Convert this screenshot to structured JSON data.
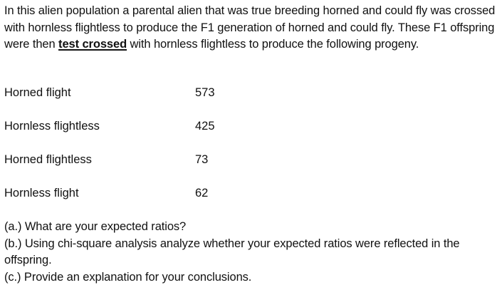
{
  "intro": {
    "text_before": "In this alien population a parental alien that was true breeding horned and could fly was crossed with hornless flightless to produce the F1 generation of horned and could fly. These F1 offspring were then ",
    "emphasis": "test crossed",
    "text_after": " with hornless flightless to produce the following progeny."
  },
  "progeny": [
    {
      "phenotype": "Horned flight",
      "count": "573"
    },
    {
      "phenotype": "Hornless flightless",
      "count": "425"
    },
    {
      "phenotype": "Horned flightless",
      "count": "73"
    },
    {
      "phenotype": "Hornless flight",
      "count": "62"
    }
  ],
  "questions": {
    "a": "(a.) What are your expected ratios?",
    "b": "(b.) Using chi-square analysis analyze whether your expected ratios were reflected in the offspring.",
    "c": "(c.) Provide an explanation for your conclusions."
  }
}
